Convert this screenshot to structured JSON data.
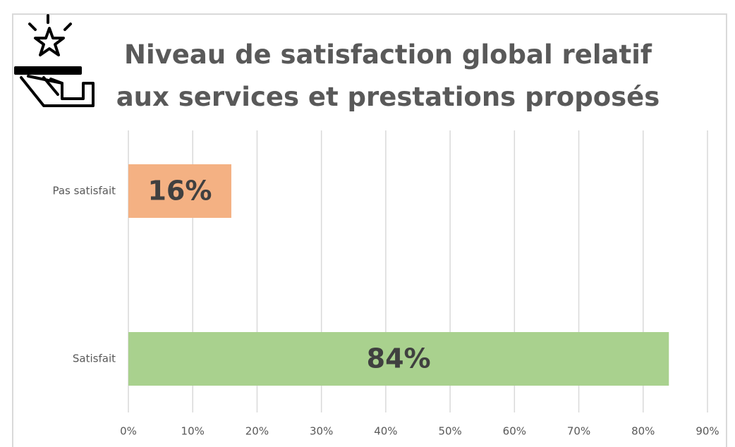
{
  "chart_data": {
    "type": "bar",
    "orientation": "horizontal",
    "title": "Niveau de satisfaction global relatif aux services et prestations proposés",
    "categories": [
      "Pas satisfait",
      "Satisfait"
    ],
    "values": [
      16,
      84
    ],
    "value_labels": [
      "16%",
      "84%"
    ],
    "colors": [
      "#f4b183",
      "#a9d18e"
    ],
    "xlim": [
      0,
      90
    ],
    "xticks": [
      {
        "value": 0,
        "label": "0%"
      },
      {
        "value": 10,
        "label": "10%"
      },
      {
        "value": 20,
        "label": "20%"
      },
      {
        "value": 30,
        "label": "30%"
      },
      {
        "value": 40,
        "label": "40%"
      },
      {
        "value": 50,
        "label": "50%"
      },
      {
        "value": 60,
        "label": "60%"
      },
      {
        "value": 70,
        "label": "70%"
      },
      {
        "value": 80,
        "label": "80%"
      },
      {
        "value": 90,
        "label": "90%"
      }
    ],
    "grid": true
  }
}
